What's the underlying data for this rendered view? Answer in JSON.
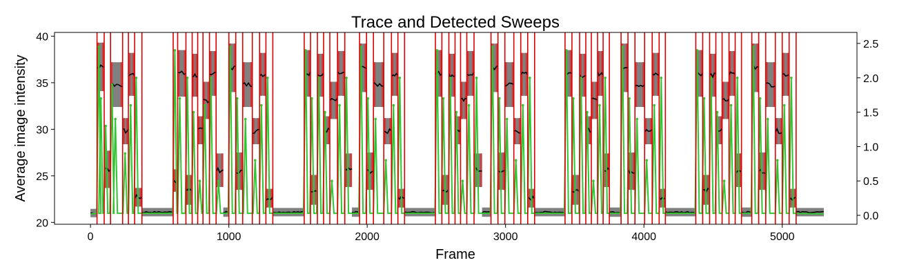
{
  "chart_data": {
    "type": "line",
    "title": "Trace and Detected Sweeps",
    "xlabel": "Frame",
    "ylabel": "Average image intensity",
    "ylabel_right": "",
    "xlim": [
      -260,
      5540
    ],
    "ylim": [
      19.8,
      40.4
    ],
    "ylim_right": [
      -0.13,
      2.66
    ],
    "x_ticks": [
      0,
      1000,
      2000,
      3000,
      4000,
      5000
    ],
    "y_ticks": [
      20,
      25,
      30,
      35,
      40
    ],
    "y_ticks_right": [
      0.0,
      0.5,
      1.0,
      1.5,
      2.0,
      2.5
    ],
    "y_tick_labels_right": [
      "0.0",
      "0.5",
      "1.0",
      "1.5",
      "2.0",
      "2.5"
    ],
    "grid": false,
    "colors": {
      "trace_raw": "#808080",
      "trace_highlight": "#c94040",
      "trace_mean": "#000000",
      "green_signal": "#33c433",
      "sweep_lines": "#dd0000"
    },
    "sweep_groups": [
      {
        "start": 47,
        "end": 372,
        "baseline": 21.0,
        "segments": [
          {
            "x": [
              47,
              99
            ],
            "mean": 36.7,
            "spread": 2.6
          },
          {
            "x": [
              99,
              145
            ],
            "mean": 25.7,
            "spread": 2.0
          },
          {
            "x": [
              145,
              232
            ],
            "mean": 34.8,
            "spread": 2.4
          },
          {
            "x": [
              232,
              274
            ],
            "mean": 29.8,
            "spread": 1.4
          },
          {
            "x": [
              274,
              319
            ],
            "mean": 35.9,
            "spread": 2.3
          },
          {
            "x": [
              319,
              372
            ],
            "mean": 22.7,
            "spread": 1.0
          }
        ]
      },
      {
        "start": 598,
        "end": 1318,
        "baseline": 21.1,
        "segments": [
          {
            "x": [
              598,
              630
            ],
            "mean": 24.5,
            "spread": 1.2
          },
          {
            "x": [
              630,
              690
            ],
            "mean": 36.0,
            "spread": 2.5
          },
          {
            "x": [
              690,
              735
            ],
            "mean": 23.5,
            "spread": 1.6
          },
          {
            "x": [
              735,
              775
            ],
            "mean": 35.8,
            "spread": 2.3
          },
          {
            "x": [
              775,
              813
            ],
            "mean": 29.9,
            "spread": 1.5
          },
          {
            "x": [
              813,
              860
            ],
            "mean": 33.1,
            "spread": 2.0
          },
          {
            "x": [
              860,
              908
            ],
            "mean": 36.0,
            "spread": 2.4
          },
          {
            "x": [
              908,
              960
            ],
            "mean": 25.6,
            "spread": 1.8
          },
          {
            "x": [
              960,
              1000
            ],
            "mean": 21.1,
            "spread": 0.5
          },
          {
            "x": [
              1000,
              1050
            ],
            "mean": 36.6,
            "spread": 2.6
          },
          {
            "x": [
              1050,
              1100
            ],
            "mean": 25.5,
            "spread": 2.0
          },
          {
            "x": [
              1100,
              1170
            ],
            "mean": 34.8,
            "spread": 2.4
          },
          {
            "x": [
              1170,
              1222
            ],
            "mean": 29.8,
            "spread": 1.4
          },
          {
            "x": [
              1222,
              1268
            ],
            "mean": 35.9,
            "spread": 2.3
          },
          {
            "x": [
              1268,
              1318
            ],
            "mean": 22.6,
            "spread": 1.0
          }
        ]
      },
      {
        "start": 1545,
        "end": 2270,
        "baseline": 21.1,
        "segments": [
          {
            "x": [
              1545,
              1590
            ],
            "mean": 36.0,
            "spread": 2.5
          },
          {
            "x": [
              1590,
              1640
            ],
            "mean": 23.5,
            "spread": 1.6
          },
          {
            "x": [
              1640,
              1685
            ],
            "mean": 35.8,
            "spread": 2.3
          },
          {
            "x": [
              1685,
              1730
            ],
            "mean": 29.9,
            "spread": 1.5
          },
          {
            "x": [
              1730,
              1785
            ],
            "mean": 33.1,
            "spread": 2.0
          },
          {
            "x": [
              1785,
              1838
            ],
            "mean": 36.0,
            "spread": 2.4
          },
          {
            "x": [
              1838,
              1890
            ],
            "mean": 25.6,
            "spread": 1.8
          },
          {
            "x": [
              1890,
              1945
            ],
            "mean": 21.1,
            "spread": 0.5
          },
          {
            "x": [
              1945,
              1995
            ],
            "mean": 36.6,
            "spread": 2.6
          },
          {
            "x": [
              1995,
              2045
            ],
            "mean": 25.5,
            "spread": 2.0
          },
          {
            "x": [
              2045,
              2120
            ],
            "mean": 34.8,
            "spread": 2.4
          },
          {
            "x": [
              2120,
              2175
            ],
            "mean": 29.8,
            "spread": 1.4
          },
          {
            "x": [
              2175,
              2222
            ],
            "mean": 35.9,
            "spread": 2.3
          },
          {
            "x": [
              2222,
              2270
            ],
            "mean": 22.6,
            "spread": 1.0
          }
        ]
      },
      {
        "start": 2493,
        "end": 3210,
        "baseline": 21.1,
        "segments": [
          {
            "x": [
              2493,
              2540
            ],
            "mean": 36.0,
            "spread": 2.5
          },
          {
            "x": [
              2540,
              2590
            ],
            "mean": 23.5,
            "spread": 1.6
          },
          {
            "x": [
              2590,
              2635
            ],
            "mean": 35.8,
            "spread": 2.3
          },
          {
            "x": [
              2635,
              2675
            ],
            "mean": 29.9,
            "spread": 1.5
          },
          {
            "x": [
              2675,
              2720
            ],
            "mean": 33.1,
            "spread": 2.0
          },
          {
            "x": [
              2720,
              2772
            ],
            "mean": 36.0,
            "spread": 2.4
          },
          {
            "x": [
              2772,
              2830
            ],
            "mean": 25.6,
            "spread": 1.8
          },
          {
            "x": [
              2830,
              2895
            ],
            "mean": 21.1,
            "spread": 0.5
          },
          {
            "x": [
              2895,
              2945
            ],
            "mean": 36.6,
            "spread": 2.6
          },
          {
            "x": [
              2945,
              2995
            ],
            "mean": 25.5,
            "spread": 2.0
          },
          {
            "x": [
              2995,
              3060
            ],
            "mean": 34.8,
            "spread": 2.4
          },
          {
            "x": [
              3060,
              3110
            ],
            "mean": 29.8,
            "spread": 1.4
          },
          {
            "x": [
              3110,
              3160
            ],
            "mean": 35.9,
            "spread": 2.3
          },
          {
            "x": [
              3160,
              3210
            ],
            "mean": 22.6,
            "spread": 1.0
          }
        ]
      },
      {
        "start": 3430,
        "end": 4155,
        "baseline": 21.1,
        "segments": [
          {
            "x": [
              3430,
              3480
            ],
            "mean": 36.0,
            "spread": 2.5
          },
          {
            "x": [
              3480,
              3535
            ],
            "mean": 23.5,
            "spread": 1.6
          },
          {
            "x": [
              3535,
              3580
            ],
            "mean": 35.8,
            "spread": 2.3
          },
          {
            "x": [
              3580,
              3620
            ],
            "mean": 29.9,
            "spread": 1.5
          },
          {
            "x": [
              3620,
              3665
            ],
            "mean": 33.1,
            "spread": 2.0
          },
          {
            "x": [
              3665,
              3705
            ],
            "mean": 36.0,
            "spread": 2.4
          },
          {
            "x": [
              3705,
              3750
            ],
            "mean": 25.6,
            "spread": 1.8
          },
          {
            "x": [
              3750,
              3835
            ],
            "mean": 21.1,
            "spread": 0.5
          },
          {
            "x": [
              3835,
              3885
            ],
            "mean": 36.6,
            "spread": 2.6
          },
          {
            "x": [
              3885,
              3935
            ],
            "mean": 25.5,
            "spread": 2.0
          },
          {
            "x": [
              3935,
              4005
            ],
            "mean": 34.8,
            "spread": 2.4
          },
          {
            "x": [
              4005,
              4060
            ],
            "mean": 29.8,
            "spread": 1.4
          },
          {
            "x": [
              4060,
              4110
            ],
            "mean": 35.9,
            "spread": 2.3
          },
          {
            "x": [
              4110,
              4155
            ],
            "mean": 22.6,
            "spread": 1.0
          }
        ]
      },
      {
        "start": 4375,
        "end": 5100,
        "baseline": 21.1,
        "segments": [
          {
            "x": [
              4375,
              4425
            ],
            "mean": 36.0,
            "spread": 2.5
          },
          {
            "x": [
              4425,
              4475
            ],
            "mean": 23.5,
            "spread": 1.6
          },
          {
            "x": [
              4475,
              4520
            ],
            "mean": 35.8,
            "spread": 2.3
          },
          {
            "x": [
              4520,
              4565
            ],
            "mean": 29.9,
            "spread": 1.5
          },
          {
            "x": [
              4565,
              4615
            ],
            "mean": 33.1,
            "spread": 2.0
          },
          {
            "x": [
              4615,
              4660
            ],
            "mean": 36.0,
            "spread": 2.4
          },
          {
            "x": [
              4660,
              4705
            ],
            "mean": 25.6,
            "spread": 1.8
          },
          {
            "x": [
              4705,
              4780
            ],
            "mean": 21.1,
            "spread": 0.5
          },
          {
            "x": [
              4780,
              4830
            ],
            "mean": 36.6,
            "spread": 2.6
          },
          {
            "x": [
              4830,
              4880
            ],
            "mean": 25.5,
            "spread": 2.0
          },
          {
            "x": [
              4880,
              4950
            ],
            "mean": 34.8,
            "spread": 2.4
          },
          {
            "x": [
              4950,
              5000
            ],
            "mean": 29.8,
            "spread": 1.4
          },
          {
            "x": [
              5000,
              5050
            ],
            "mean": 35.9,
            "spread": 2.3
          },
          {
            "x": [
              5050,
              5100
            ],
            "mean": 22.6,
            "spread": 1.0
          }
        ]
      }
    ],
    "trace_range": [
      0,
      5300
    ],
    "sweep_lines_x": [
      47,
      99,
      145,
      232,
      274,
      319,
      372,
      598,
      630,
      690,
      735,
      775,
      813,
      860,
      908,
      1000,
      1050,
      1100,
      1170,
      1222,
      1268,
      1318,
      1545,
      1590,
      1640,
      1685,
      1730,
      1785,
      1838,
      1945,
      1995,
      2045,
      2120,
      2175,
      2222,
      2270,
      2493,
      2540,
      2590,
      2635,
      2675,
      2720,
      2772,
      2895,
      2945,
      2995,
      3060,
      3110,
      3160,
      3210,
      3430,
      3480,
      3535,
      3580,
      3620,
      3665,
      3705,
      3750,
      3835,
      3885,
      3935,
      4005,
      4060,
      4110,
      4155,
      4375,
      4425,
      4475,
      4520,
      4565,
      4615,
      4660,
      4705,
      4780,
      4830,
      4880,
      4950,
      5000,
      5050,
      5100
    ],
    "green_peaks": [
      {
        "x": 60,
        "y": 2.45
      },
      {
        "x": 75,
        "y": 1.7
      },
      {
        "x": 110,
        "y": 1.3
      },
      {
        "x": 155,
        "y": 1.9
      },
      {
        "x": 180,
        "y": 1.4
      },
      {
        "x": 250,
        "y": 0.9
      },
      {
        "x": 290,
        "y": 1.6
      },
      {
        "x": 330,
        "y": 2.0
      },
      {
        "x": 610,
        "y": 2.4
      },
      {
        "x": 645,
        "y": 1.7
      },
      {
        "x": 700,
        "y": 2.0
      },
      {
        "x": 745,
        "y": 1.5
      },
      {
        "x": 790,
        "y": 0.5
      },
      {
        "x": 825,
        "y": 1.6
      },
      {
        "x": 870,
        "y": 2.0
      },
      {
        "x": 925,
        "y": 0.5
      },
      {
        "x": 1010,
        "y": 2.45
      },
      {
        "x": 1060,
        "y": 1.7
      },
      {
        "x": 1120,
        "y": 1.4
      },
      {
        "x": 1190,
        "y": 0.8
      },
      {
        "x": 1235,
        "y": 1.6
      },
      {
        "x": 1280,
        "y": 2.0
      },
      {
        "x": 1555,
        "y": 2.4
      },
      {
        "x": 1600,
        "y": 1.7
      },
      {
        "x": 1650,
        "y": 2.0
      },
      {
        "x": 1695,
        "y": 1.5
      },
      {
        "x": 1745,
        "y": 0.5
      },
      {
        "x": 1800,
        "y": 1.6
      },
      {
        "x": 1850,
        "y": 2.0
      },
      {
        "x": 1955,
        "y": 2.45
      },
      {
        "x": 2005,
        "y": 1.7
      },
      {
        "x": 2060,
        "y": 1.4
      },
      {
        "x": 2135,
        "y": 0.8
      },
      {
        "x": 2190,
        "y": 1.6
      },
      {
        "x": 2235,
        "y": 2.0
      },
      {
        "x": 2505,
        "y": 2.4
      },
      {
        "x": 2550,
        "y": 1.7
      },
      {
        "x": 2600,
        "y": 2.0
      },
      {
        "x": 2645,
        "y": 1.5
      },
      {
        "x": 2690,
        "y": 0.5
      },
      {
        "x": 2735,
        "y": 1.6
      },
      {
        "x": 2790,
        "y": 2.0
      },
      {
        "x": 2905,
        "y": 2.45
      },
      {
        "x": 2955,
        "y": 1.7
      },
      {
        "x": 3010,
        "y": 1.4
      },
      {
        "x": 3075,
        "y": 0.8
      },
      {
        "x": 3125,
        "y": 1.6
      },
      {
        "x": 3175,
        "y": 2.0
      },
      {
        "x": 3440,
        "y": 2.4
      },
      {
        "x": 3490,
        "y": 1.7
      },
      {
        "x": 3545,
        "y": 2.0
      },
      {
        "x": 3590,
        "y": 1.5
      },
      {
        "x": 3635,
        "y": 0.5
      },
      {
        "x": 3680,
        "y": 1.6
      },
      {
        "x": 3720,
        "y": 2.0
      },
      {
        "x": 3845,
        "y": 2.45
      },
      {
        "x": 3895,
        "y": 1.7
      },
      {
        "x": 3950,
        "y": 1.4
      },
      {
        "x": 4020,
        "y": 0.8
      },
      {
        "x": 4075,
        "y": 1.6
      },
      {
        "x": 4125,
        "y": 2.0
      },
      {
        "x": 4385,
        "y": 2.4
      },
      {
        "x": 4435,
        "y": 1.7
      },
      {
        "x": 4485,
        "y": 2.0
      },
      {
        "x": 4530,
        "y": 1.5
      },
      {
        "x": 4580,
        "y": 0.5
      },
      {
        "x": 4630,
        "y": 1.6
      },
      {
        "x": 4675,
        "y": 2.0
      },
      {
        "x": 4790,
        "y": 2.45
      },
      {
        "x": 4840,
        "y": 1.7
      },
      {
        "x": 4895,
        "y": 1.4
      },
      {
        "x": 4965,
        "y": 0.8
      },
      {
        "x": 5015,
        "y": 1.6
      },
      {
        "x": 5065,
        "y": 2.0
      }
    ]
  }
}
